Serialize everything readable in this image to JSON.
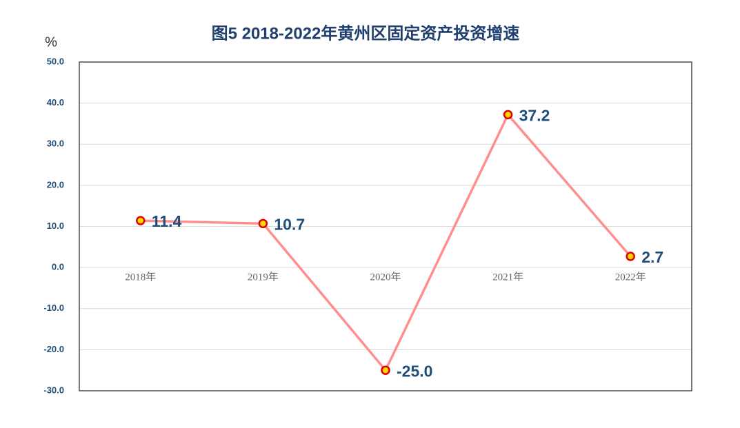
{
  "chart_data": {
    "type": "line",
    "title": "图5  2018-2022年黄州区固定资产投资增速",
    "y_label": "%",
    "categories": [
      "2018年",
      "2019年",
      "2020年",
      "2021年",
      "2022年"
    ],
    "values": [
      11.4,
      10.7,
      -25.0,
      37.2,
      2.7
    ],
    "value_labels": [
      "11.4",
      "10.7",
      "-25.0",
      "37.2",
      "2.7"
    ],
    "color": "#ff8f8f",
    "marker_color": "#ffd700",
    "ylim": [
      -30,
      50
    ],
    "yticks": [
      {
        "value": -30,
        "label": "-30.0"
      },
      {
        "value": -20,
        "label": "-20.0"
      },
      {
        "value": -10,
        "label": "-10.0"
      },
      {
        "value": 0,
        "label": "0.0"
      },
      {
        "value": 10,
        "label": "10.0"
      },
      {
        "value": 20,
        "label": "20.0"
      },
      {
        "value": 30,
        "label": "30.0"
      },
      {
        "value": 40,
        "label": "40.0"
      },
      {
        "value": 50,
        "label": "50.0"
      }
    ],
    "grid": true
  }
}
